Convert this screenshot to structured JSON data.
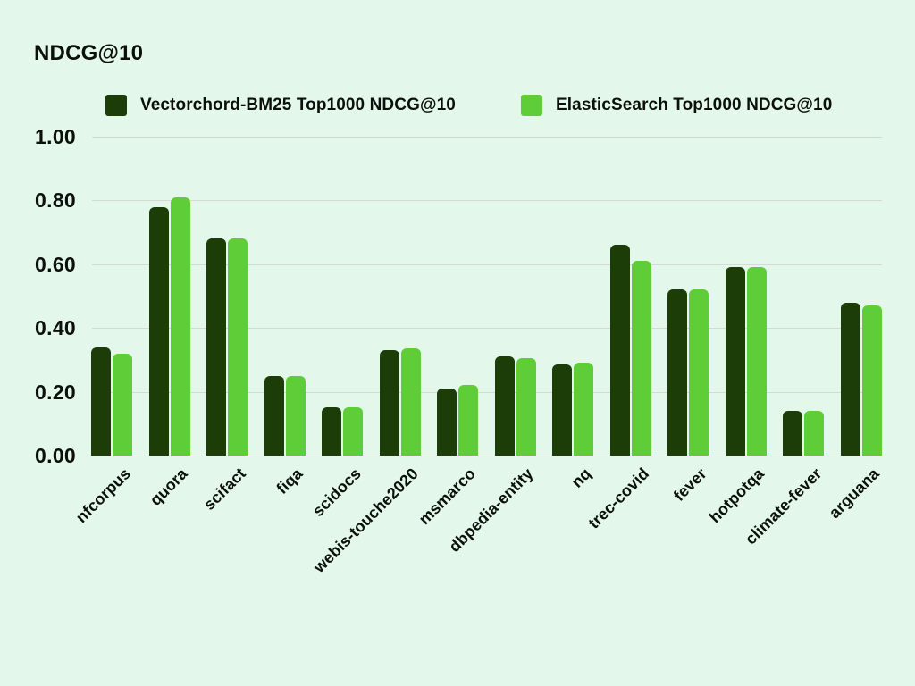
{
  "page": {
    "background_color": "#e3f8ea",
    "text_color": "#0b100a",
    "gridline_color": "#d5dbd4"
  },
  "header": {
    "title": "NDCG@10"
  },
  "legend": {
    "items": [
      {
        "label": "Vectorchord-BM25 Top1000 NDCG@10",
        "color": "#1c3c08"
      },
      {
        "label": "ElasticSearch Top1000 NDCG@10",
        "color": "#5ecd37"
      }
    ]
  },
  "chart_data": {
    "type": "bar",
    "title": "NDCG@10",
    "xlabel": "",
    "ylabel": "NDCG@10",
    "ylim": [
      0,
      1.0
    ],
    "yticks": [
      "0.00",
      "0.20",
      "0.40",
      "0.60",
      "0.80",
      "1.00"
    ],
    "grid": true,
    "legend_position": "top",
    "categories": [
      "nfcorpus",
      "quora",
      "scifact",
      "fiqa",
      "scidocs",
      "webis-touche2020",
      "msmarco",
      "dbpedia-entity",
      "nq",
      "trec-covid",
      "fever",
      "hotpotqa",
      "climate-fever",
      "arguana"
    ],
    "series": [
      {
        "name": "Vectorchord-BM25 Top1000 NDCG@10",
        "color": "#1c3c08",
        "values": [
          0.34,
          0.78,
          0.68,
          0.25,
          0.15,
          0.33,
          0.21,
          0.31,
          0.285,
          0.66,
          0.52,
          0.59,
          0.14,
          0.48
        ]
      },
      {
        "name": "ElasticSearch Top1000 NDCG@10",
        "color": "#5ecd37",
        "values": [
          0.32,
          0.81,
          0.68,
          0.25,
          0.15,
          0.335,
          0.22,
          0.305,
          0.29,
          0.61,
          0.52,
          0.59,
          0.14,
          0.47
        ]
      }
    ]
  }
}
